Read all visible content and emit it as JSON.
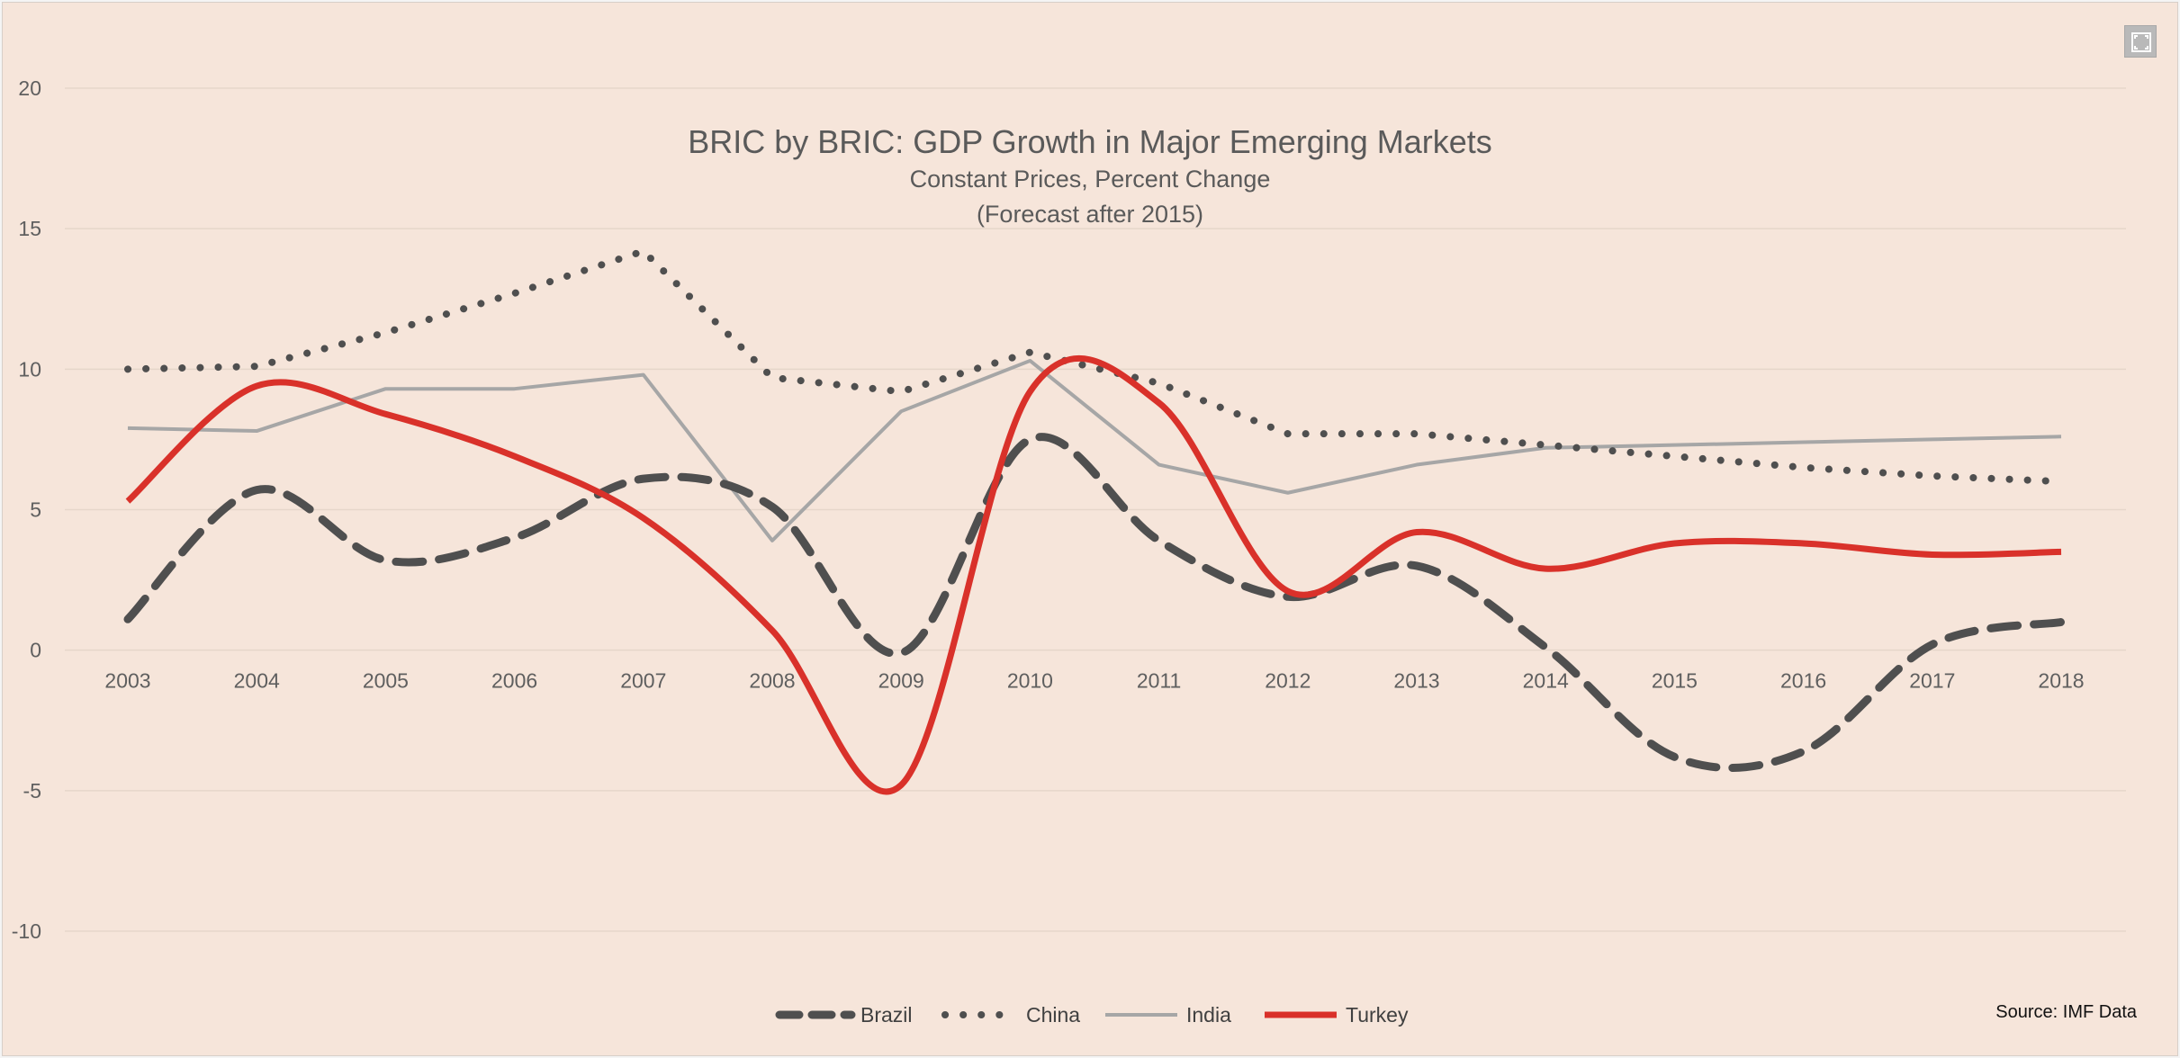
{
  "chart_data": {
    "type": "line",
    "title": "BRIC by BRIC: GDP Growth in Major Emerging Markets",
    "subtitle": "Constant Prices, Percent Change",
    "subtitle2": "(Forecast after 2015)",
    "source": "Source: IMF Data",
    "categories": [
      "2003",
      "2004",
      "2005",
      "2006",
      "2007",
      "2008",
      "2009",
      "2010",
      "2011",
      "2012",
      "2013",
      "2014",
      "2015",
      "2016",
      "2017",
      "2018"
    ],
    "ylim": [
      -10,
      20
    ],
    "yticks": [
      20,
      15,
      10,
      5,
      0,
      -5,
      -10
    ],
    "grid": true,
    "legend_position": "bottom",
    "series": [
      {
        "name": "Brazil",
        "color": "#4f4f4f",
        "style": "dashed",
        "smooth": true,
        "values": [
          1.1,
          5.7,
          3.2,
          4.0,
          6.1,
          5.1,
          -0.1,
          7.5,
          3.9,
          1.9,
          3.0,
          0.1,
          -3.8,
          -3.6,
          0.2,
          1.0
        ]
      },
      {
        "name": "China",
        "color": "#4f4f4f",
        "style": "dotted",
        "smooth": false,
        "values": [
          10.0,
          10.1,
          11.3,
          12.7,
          14.2,
          9.7,
          9.2,
          10.6,
          9.5,
          7.7,
          7.7,
          7.3,
          6.9,
          6.5,
          6.2,
          6.0
        ]
      },
      {
        "name": "India",
        "color": "#a6a6a6",
        "style": "solid",
        "smooth": false,
        "values": [
          7.9,
          7.8,
          9.3,
          9.3,
          9.8,
          3.9,
          8.5,
          10.3,
          6.6,
          5.6,
          6.6,
          7.2,
          7.3,
          7.4,
          7.5,
          7.6
        ]
      },
      {
        "name": "Turkey",
        "color": "#d9312a",
        "style": "solid",
        "smooth": true,
        "values": [
          5.3,
          9.4,
          8.4,
          6.9,
          4.7,
          0.7,
          -4.8,
          9.2,
          8.8,
          2.1,
          4.2,
          2.9,
          3.8,
          3.8,
          3.4,
          3.5
        ]
      }
    ]
  },
  "controls": {
    "expand_icon": "expand-icon"
  }
}
